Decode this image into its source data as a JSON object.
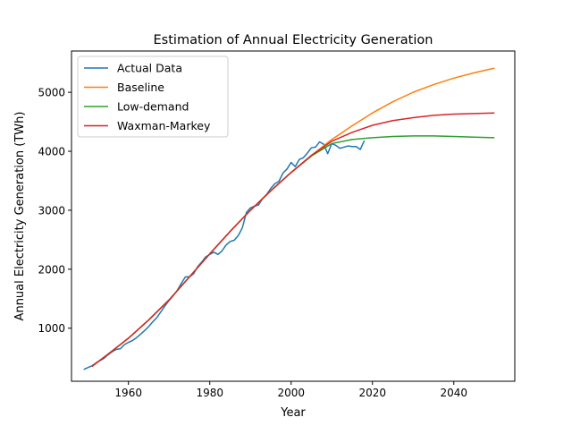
{
  "chart_data": {
    "type": "line",
    "title": "Estimation of Annual Electricity Generation",
    "xlabel": "Year",
    "ylabel": "Annual Electricity Generation (TWh)",
    "xlim": [
      1946,
      2055
    ],
    "ylim": [
      100,
      5700
    ],
    "xticks": [
      1960,
      1980,
      2000,
      2020,
      2040
    ],
    "yticks": [
      1000,
      2000,
      3000,
      4000,
      5000
    ],
    "grid": false,
    "legend_position": "top-left",
    "series": [
      {
        "name": "Actual Data",
        "color": "#1f77b4",
        "x": [
          1949,
          1950,
          1951,
          1952,
          1953,
          1954,
          1955,
          1956,
          1957,
          1958,
          1959,
          1960,
          1961,
          1962,
          1963,
          1964,
          1965,
          1966,
          1967,
          1968,
          1969,
          1970,
          1971,
          1972,
          1973,
          1974,
          1975,
          1976,
          1977,
          1978,
          1979,
          1980,
          1981,
          1982,
          1983,
          1984,
          1985,
          1986,
          1987,
          1988,
          1989,
          1990,
          1991,
          1992,
          1993,
          1994,
          1995,
          1996,
          1997,
          1998,
          1999,
          2000,
          2001,
          2002,
          2003,
          2004,
          2005,
          2006,
          2007,
          2008,
          2009,
          2010,
          2011,
          2012,
          2013,
          2014,
          2015,
          2016,
          2017,
          2018
        ],
        "y": [
          300,
          330,
          360,
          410,
          450,
          490,
          550,
          600,
          640,
          650,
          720,
          760,
          790,
          840,
          900,
          960,
          1030,
          1110,
          1180,
          1280,
          1380,
          1470,
          1550,
          1640,
          1760,
          1870,
          1870,
          1920,
          2040,
          2120,
          2210,
          2250,
          2290,
          2250,
          2310,
          2410,
          2470,
          2490,
          2570,
          2700,
          2960,
          3040,
          3070,
          3090,
          3200,
          3270,
          3370,
          3450,
          3490,
          3630,
          3700,
          3810,
          3740,
          3860,
          3890,
          3970,
          4060,
          4070,
          4160,
          4120,
          3960,
          4130,
          4100,
          4050,
          4070,
          4090,
          4080,
          4080,
          4030,
          4180
        ]
      },
      {
        "name": "Baseline",
        "color": "#ff7f0e",
        "x": [
          1951,
          1955,
          1960,
          1965,
          1970,
          1975,
          1980,
          1985,
          1990,
          1995,
          2000,
          2005,
          2010,
          2015,
          2020,
          2025,
          2030,
          2035,
          2040,
          2045,
          2050
        ],
        "y": [
          350,
          560,
          830,
          1140,
          1480,
          1870,
          2260,
          2640,
          3000,
          3330,
          3640,
          3930,
          4200,
          4430,
          4650,
          4840,
          5000,
          5130,
          5240,
          5330,
          5410
        ]
      },
      {
        "name": "Low-demand",
        "color": "#2ca02c",
        "x": [
          1951,
          1955,
          1960,
          1965,
          1970,
          1975,
          1980,
          1985,
          1990,
          1995,
          2000,
          2005,
          2010,
          2015,
          2020,
          2025,
          2030,
          2035,
          2040,
          2045,
          2050
        ],
        "y": [
          350,
          560,
          830,
          1140,
          1480,
          1870,
          2260,
          2640,
          3000,
          3330,
          3640,
          3920,
          4130,
          4200,
          4230,
          4250,
          4260,
          4260,
          4250,
          4240,
          4230
        ]
      },
      {
        "name": "Waxman-Markey",
        "color": "#d62728",
        "x": [
          1951,
          1955,
          1960,
          1965,
          1970,
          1975,
          1980,
          1985,
          1990,
          1995,
          2000,
          2005,
          2010,
          2015,
          2020,
          2025,
          2030,
          2035,
          2040,
          2045,
          2050
        ],
        "y": [
          350,
          560,
          830,
          1140,
          1480,
          1870,
          2260,
          2640,
          3000,
          3330,
          3640,
          3930,
          4170,
          4320,
          4440,
          4520,
          4570,
          4610,
          4630,
          4640,
          4650
        ]
      }
    ]
  }
}
